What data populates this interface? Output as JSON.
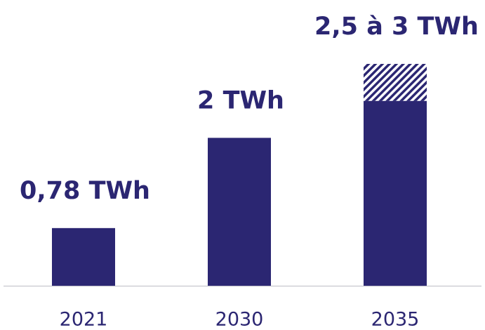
{
  "chart_data": {
    "type": "bar",
    "stacked": true,
    "categories": [
      "2021",
      "2030",
      "2035"
    ],
    "series": [
      {
        "color": "#2b2672",
        "values": [
          0.78,
          2,
          2.5
        ],
        "value_labels": [
          "0,78 TWh",
          "2 TWh",
          "2,5 à 3 TWh"
        ]
      },
      {
        "color": "#2b2672",
        "pattern": "hatch",
        "values": [
          null,
          null,
          0.5
        ]
      }
    ],
    "ylim": [
      0,
      3
    ]
  }
}
